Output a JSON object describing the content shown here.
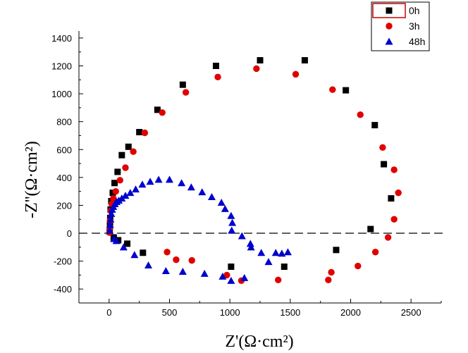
{
  "chart_data": {
    "type": "scatter",
    "xlabel": "Z'(Ω·cm²)",
    "ylabel": "-Z''(Ω·cm²)",
    "xlim": [
      -250,
      2750
    ],
    "ylim": [
      -500,
      1450
    ],
    "x_ticks": [
      0,
      500,
      1000,
      1500,
      2000,
      2500
    ],
    "y_ticks": [
      -400,
      -200,
      0,
      200,
      400,
      600,
      800,
      1000,
      1200,
      1400
    ],
    "x_tick_labels": [
      "0",
      "500",
      "1000",
      "1500",
      "2000",
      "2500"
    ],
    "y_tick_labels": [
      "-400",
      "-200",
      "0",
      "200",
      "400",
      "600",
      "800",
      "1000",
      "1200",
      "1400"
    ],
    "zero_line": "dashed",
    "legend_position": "top-right",
    "series": [
      {
        "name": "0h",
        "marker": "square",
        "color": "#000000",
        "points": [
          [
            5,
            10
          ],
          [
            7,
            60
          ],
          [
            9,
            110
          ],
          [
            12,
            170
          ],
          [
            18,
            230
          ],
          [
            30,
            290
          ],
          [
            45,
            360
          ],
          [
            70,
            440
          ],
          [
            105,
            560
          ],
          [
            160,
            620
          ],
          [
            250,
            725
          ],
          [
            400,
            885
          ],
          [
            610,
            1065
          ],
          [
            885,
            1200
          ],
          [
            1250,
            1240
          ],
          [
            1620,
            1240
          ],
          [
            1960,
            1025
          ],
          [
            2200,
            775
          ],
          [
            2275,
            495
          ],
          [
            2335,
            250
          ],
          [
            2165,
            30
          ],
          [
            1880,
            -120
          ],
          [
            1450,
            -240
          ],
          [
            1010,
            -240
          ],
          [
            280,
            -140
          ],
          [
            150,
            -75
          ],
          [
            75,
            -50
          ],
          [
            38,
            -30
          ]
        ]
      },
      {
        "name": "3h",
        "marker": "circle",
        "color": "#e00000",
        "points": [
          [
            4,
            5
          ],
          [
            6,
            40
          ],
          [
            8,
            90
          ],
          [
            14,
            160
          ],
          [
            22,
            210
          ],
          [
            35,
            250
          ],
          [
            55,
            300
          ],
          [
            90,
            380
          ],
          [
            135,
            470
          ],
          [
            200,
            585
          ],
          [
            295,
            720
          ],
          [
            440,
            865
          ],
          [
            635,
            1010
          ],
          [
            900,
            1120
          ],
          [
            1220,
            1180
          ],
          [
            1545,
            1140
          ],
          [
            1850,
            1030
          ],
          [
            2080,
            850
          ],
          [
            2265,
            615
          ],
          [
            2360,
            455
          ],
          [
            2395,
            290
          ],
          [
            2360,
            100
          ],
          [
            2310,
            -30
          ],
          [
            2205,
            -135
          ],
          [
            2060,
            -235
          ],
          [
            1840,
            -280
          ],
          [
            1815,
            -335
          ],
          [
            1400,
            -335
          ],
          [
            1095,
            -340
          ],
          [
            975,
            -300
          ],
          [
            685,
            -195
          ],
          [
            555,
            -190
          ],
          [
            480,
            -135
          ]
        ]
      },
      {
        "name": "48h",
        "marker": "triangle",
        "color": "#0000cc",
        "points": [
          [
            5,
            20
          ],
          [
            8,
            60
          ],
          [
            12,
            100
          ],
          [
            18,
            140
          ],
          [
            25,
            170
          ],
          [
            35,
            190
          ],
          [
            48,
            210
          ],
          [
            62,
            225
          ],
          [
            80,
            235
          ],
          [
            105,
            250
          ],
          [
            135,
            270
          ],
          [
            175,
            290
          ],
          [
            220,
            315
          ],
          [
            275,
            350
          ],
          [
            340,
            370
          ],
          [
            410,
            385
          ],
          [
            500,
            385
          ],
          [
            600,
            360
          ],
          [
            680,
            330
          ],
          [
            770,
            295
          ],
          [
            850,
            260
          ],
          [
            930,
            220
          ],
          [
            960,
            175
          ],
          [
            1010,
            125
          ],
          [
            1020,
            75
          ],
          [
            1015,
            20
          ],
          [
            1100,
            -20
          ],
          [
            1170,
            -75
          ],
          [
            1175,
            -100
          ],
          [
            1260,
            -140
          ],
          [
            1320,
            -205
          ],
          [
            1380,
            -140
          ],
          [
            1430,
            -145
          ],
          [
            1480,
            -135
          ],
          [
            1120,
            -320
          ],
          [
            1010,
            -340
          ],
          [
            940,
            -310
          ],
          [
            790,
            -290
          ],
          [
            610,
            -275
          ],
          [
            470,
            -270
          ],
          [
            325,
            -230
          ],
          [
            210,
            -155
          ],
          [
            120,
            -100
          ],
          [
            60,
            -55
          ],
          [
            40,
            -40
          ]
        ]
      }
    ]
  }
}
